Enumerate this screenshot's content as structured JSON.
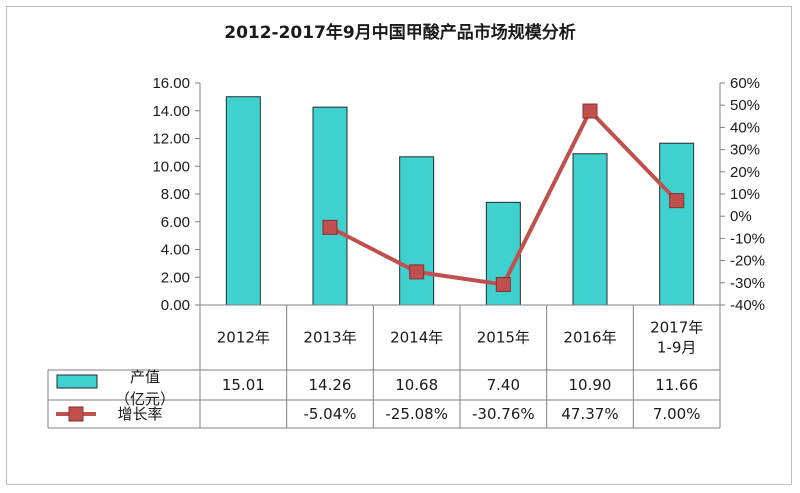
{
  "chart_data": {
    "type": "bar",
    "title": "2012-2017年9月中国甲酸产品市场规模分析",
    "categories": [
      [
        "2012年"
      ],
      [
        "2013年"
      ],
      [
        "2014年"
      ],
      [
        "2015年"
      ],
      [
        "2016年"
      ],
      [
        "2017年",
        "1-9月"
      ]
    ],
    "series": [
      {
        "name": "产值（亿元）",
        "legend_lines": [
          "产值",
          "（亿元）"
        ],
        "type": "bar",
        "axis": "left",
        "color": "#3fd0d0",
        "values": [
          15.01,
          14.26,
          10.68,
          7.4,
          10.9,
          11.66
        ],
        "labels": [
          "15.01",
          "14.26",
          "10.68",
          "7.40",
          "10.90",
          "11.66"
        ]
      },
      {
        "name": "增长率",
        "legend_lines": [
          "增长率"
        ],
        "type": "line",
        "axis": "right",
        "color": "#c0504d",
        "values": [
          null,
          -5.04,
          -25.08,
          -30.76,
          47.37,
          7.0
        ],
        "labels": [
          "",
          "-5.04%",
          "-25.08%",
          "-30.76%",
          "47.37%",
          "7.00%"
        ]
      }
    ],
    "left_axis": {
      "ylim": [
        0,
        16
      ],
      "ticks": [
        "0.00",
        "2.00",
        "4.00",
        "6.00",
        "8.00",
        "10.00",
        "12.00",
        "14.00",
        "16.00"
      ]
    },
    "right_axis": {
      "ylim": [
        -40,
        60
      ],
      "ticks": [
        "-40%",
        "-30%",
        "-20%",
        "-10%",
        "0%",
        "10%",
        "20%",
        "30%",
        "40%",
        "50%",
        "60%"
      ]
    },
    "grid": false,
    "legend": "data-table"
  }
}
